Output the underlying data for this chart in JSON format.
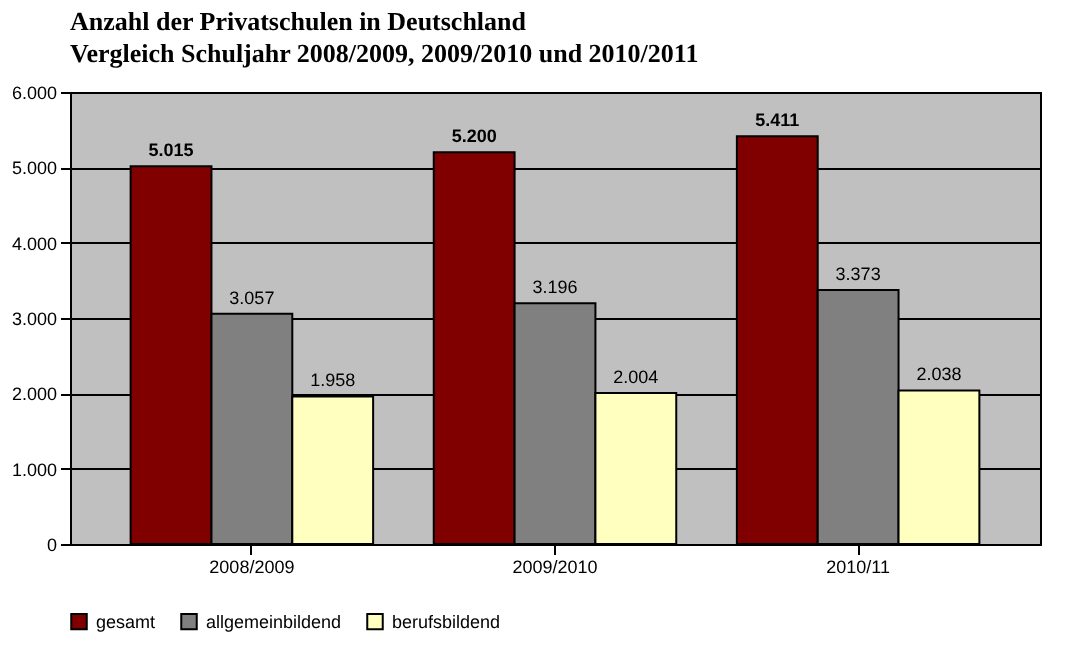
{
  "chart_data": {
    "type": "bar",
    "title": "Anzahl der Privatschulen in Deutschland",
    "subtitle": "Vergleich Schuljahr 2008/2009, 2009/2010 und 2010/2011",
    "categories": [
      "2008/2009",
      "2009/2010",
      "2010/11"
    ],
    "series": [
      {
        "name": "gesamt",
        "color": "#800000",
        "values": [
          5015,
          5200,
          5411
        ],
        "value_labels": [
          "5.015",
          "5.200",
          "5.411"
        ]
      },
      {
        "name": "allgemeinbildend",
        "color": "#808080",
        "values": [
          3057,
          3196,
          3373
        ],
        "value_labels": [
          "3.057",
          "3.196",
          "3.373"
        ]
      },
      {
        "name": "berufsbildend",
        "color": "#ffffc0",
        "values": [
          1958,
          2004,
          2038
        ],
        "value_labels": [
          "1.958",
          "2.004",
          "2.038"
        ]
      }
    ],
    "ylim": [
      0,
      6000
    ],
    "yticks": [
      0,
      {
        "value": 1000,
        "label": "1.000"
      },
      {
        "value": 2000,
        "label": "2.000"
      },
      {
        "value": 3000,
        "label": "3.000"
      },
      {
        "value": 4000,
        "label": "4.000"
      },
      {
        "value": 5000,
        "label": "5.000"
      },
      {
        "value": 6000,
        "label": "6.000"
      }
    ],
    "grid": "y",
    "legend": "bottom"
  }
}
